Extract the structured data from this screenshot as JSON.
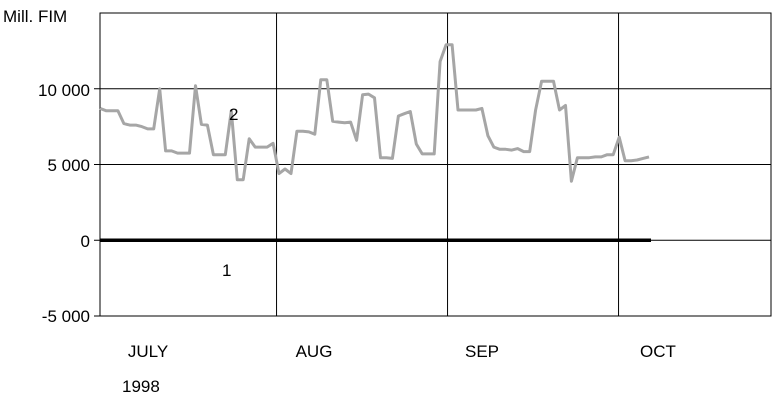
{
  "chart_data": {
    "type": "line",
    "ylabel": "Mill. FIM",
    "year_label": "1998",
    "ylim": [
      -5000,
      15000
    ],
    "yticks": [
      {
        "value": 10000,
        "label": "10 000"
      },
      {
        "value": 5000,
        "label": "5 000"
      },
      {
        "value": 0,
        "label": "0"
      },
      {
        "value": -5000,
        "label": "-5 000"
      }
    ],
    "months": [
      "JULY",
      "AUG",
      "SEP",
      "OCT"
    ],
    "series_label_colors": {
      "1": "#000000",
      "2": "#a6a6a6"
    },
    "series": [
      {
        "label": "1",
        "color": "#000000",
        "points": [
          [
            "1998-07-01",
            0
          ],
          [
            "1998-10-01",
            0
          ]
        ]
      },
      {
        "label": "2",
        "color": "#a6a6a6",
        "points": [
          [
            "1998-07-01",
            8700
          ],
          [
            "1998-07-02",
            8550
          ],
          [
            "1998-07-03",
            8550
          ],
          [
            "1998-07-06",
            8550
          ],
          [
            "1998-07-07",
            7700
          ],
          [
            "1998-07-08",
            7600
          ],
          [
            "1998-07-09",
            7600
          ],
          [
            "1998-07-10",
            7500
          ],
          [
            "1998-07-13",
            7350
          ],
          [
            "1998-07-14",
            7350
          ],
          [
            "1998-07-15",
            10000
          ],
          [
            "1998-07-16",
            5900
          ],
          [
            "1998-07-17",
            5900
          ],
          [
            "1998-07-20",
            5750
          ],
          [
            "1998-07-21",
            5750
          ],
          [
            "1998-07-22",
            5750
          ],
          [
            "1998-07-23",
            10200
          ],
          [
            "1998-07-24",
            7650
          ],
          [
            "1998-07-27",
            7600
          ],
          [
            "1998-07-28",
            5650
          ],
          [
            "1998-07-29",
            5650
          ],
          [
            "1998-07-30",
            5650
          ],
          [
            "1998-07-31",
            8550
          ],
          [
            "1998-08-03",
            4000
          ],
          [
            "1998-08-04",
            4000
          ],
          [
            "1998-08-05",
            6700
          ],
          [
            "1998-08-06",
            6150
          ],
          [
            "1998-08-07",
            6150
          ],
          [
            "1998-08-10",
            6150
          ],
          [
            "1998-08-11",
            6400
          ],
          [
            "1998-08-12",
            4400
          ],
          [
            "1998-08-13",
            4700
          ],
          [
            "1998-08-14",
            4400
          ],
          [
            "1998-08-17",
            7200
          ],
          [
            "1998-08-18",
            7200
          ],
          [
            "1998-08-19",
            7150
          ],
          [
            "1998-08-20",
            7000
          ],
          [
            "1998-08-21",
            10600
          ],
          [
            "1998-08-24",
            10600
          ],
          [
            "1998-08-25",
            7850
          ],
          [
            "1998-08-26",
            7800
          ],
          [
            "1998-08-27",
            7750
          ],
          [
            "1998-08-28",
            7800
          ],
          [
            "1998-08-31",
            6600
          ],
          [
            "1998-09-01",
            9600
          ],
          [
            "1998-09-02",
            9650
          ],
          [
            "1998-09-03",
            9400
          ],
          [
            "1998-09-04",
            5450
          ],
          [
            "1998-09-07",
            5450
          ],
          [
            "1998-09-08",
            5400
          ],
          [
            "1998-09-09",
            8200
          ],
          [
            "1998-09-10",
            8350
          ],
          [
            "1998-09-11",
            8500
          ],
          [
            "1998-09-14",
            6350
          ],
          [
            "1998-09-15",
            5700
          ],
          [
            "1998-09-16",
            5700
          ],
          [
            "1998-09-17",
            5700
          ],
          [
            "1998-09-18",
            11800
          ],
          [
            "1998-09-21",
            12900
          ],
          [
            "1998-09-22",
            12900
          ],
          [
            "1998-09-23",
            8600
          ],
          [
            "1998-09-24",
            8600
          ],
          [
            "1998-09-25",
            8600
          ],
          [
            "1998-09-28",
            8600
          ],
          [
            "1998-09-29",
            8700
          ],
          [
            "1998-09-30",
            6900
          ],
          [
            "1998-10-01",
            6150
          ],
          [
            "1998-10-02",
            6000
          ],
          [
            "1998-10-05",
            6000
          ],
          [
            "1998-10-06",
            5950
          ],
          [
            "1998-10-07",
            6050
          ],
          [
            "1998-10-08",
            5850
          ],
          [
            "1998-10-09",
            5850
          ],
          [
            "1998-10-12",
            8600
          ],
          [
            "1998-10-13",
            10500
          ],
          [
            "1998-10-14",
            10500
          ],
          [
            "1998-10-15",
            10500
          ],
          [
            "1998-10-16",
            8600
          ],
          [
            "1998-10-19",
            8900
          ],
          [
            "1998-10-20",
            3900
          ],
          [
            "1998-10-21",
            5450
          ],
          [
            "1998-10-22",
            5450
          ],
          [
            "1998-10-23",
            5450
          ],
          [
            "1998-10-26",
            5500
          ],
          [
            "1998-10-27",
            5500
          ],
          [
            "1998-10-28",
            5650
          ],
          [
            "1998-10-29",
            5650
          ],
          [
            "1998-10-30",
            6800
          ],
          [
            "1998-11-02",
            5250
          ],
          [
            "1998-11-03",
            5250
          ],
          [
            "1998-11-04",
            5300
          ],
          [
            "1998-11-05",
            5400
          ],
          [
            "1998-11-06",
            5500
          ]
        ]
      }
    ],
    "grid": true,
    "legend": "inline labels"
  }
}
